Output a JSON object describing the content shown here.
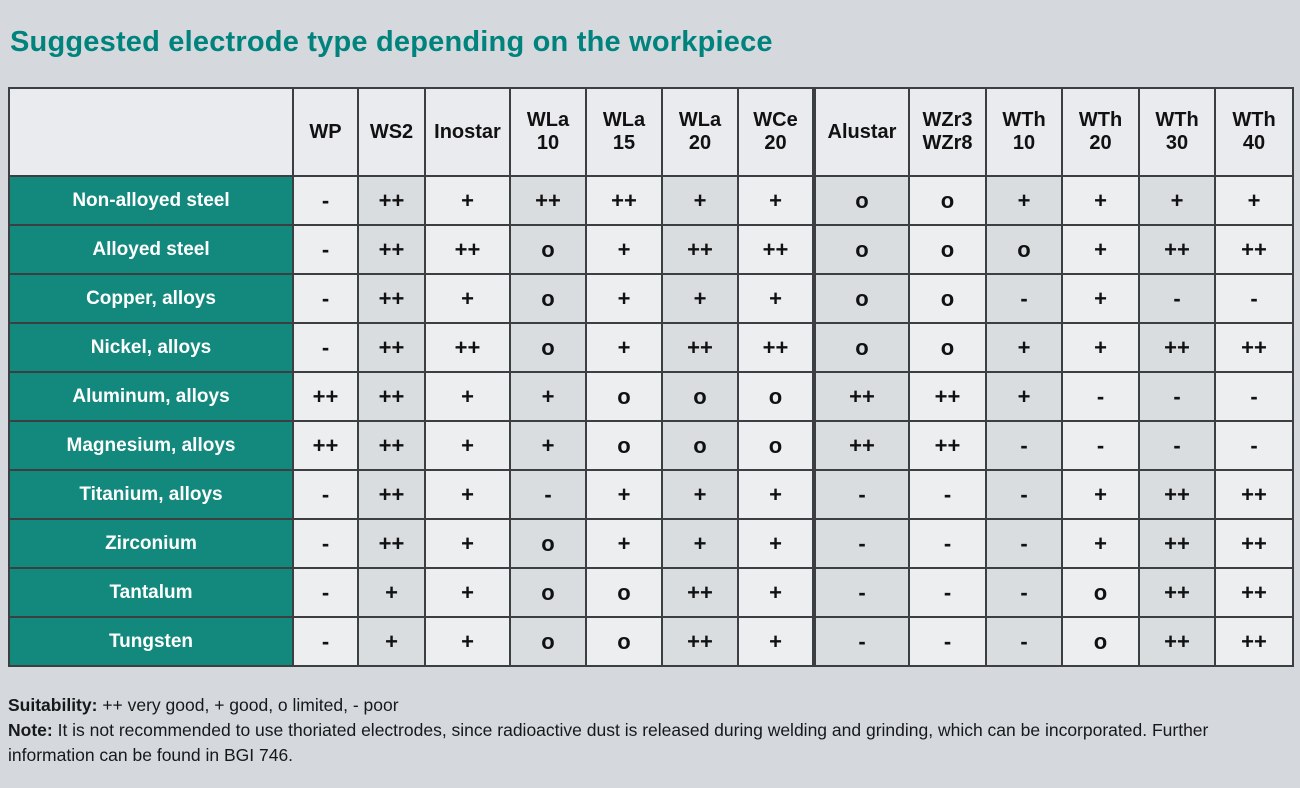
{
  "page": {
    "title": "Suggested electrode type depending on the workpiece"
  },
  "colors": {
    "background": "#d5d9dd",
    "title_teal": "#00837c",
    "row_header_teal": "#13897e",
    "cell_light": "#eceef0",
    "cell_dark": "#d9dde0",
    "header_cell": "#e9ebee",
    "border": "#3b3f42"
  },
  "table": {
    "corner_label": "",
    "columns": [
      "WP",
      "WS2",
      "Inostar",
      "WLa\n10",
      "WLa\n15",
      "WLa\n20",
      "WCe\n20",
      "Alustar",
      "WZr3\nWZr8",
      "WTh\n10",
      "WTh\n20",
      "WTh\n30",
      "WTh\n40"
    ],
    "group_separator_before_column": "Alustar",
    "rows": [
      {
        "label": "Non-alloyed steel",
        "values": [
          "-",
          "++",
          "+",
          "++",
          "++",
          "+",
          "+",
          "o",
          "o",
          "+",
          "+",
          "+",
          "+"
        ]
      },
      {
        "label": "Alloyed steel",
        "values": [
          "-",
          "++",
          "++",
          "o",
          "+",
          "++",
          "++",
          "o",
          "o",
          "o",
          "+",
          "++",
          "++"
        ]
      },
      {
        "label": "Copper, alloys",
        "values": [
          "-",
          "++",
          "+",
          "o",
          "+",
          "+",
          "+",
          "o",
          "o",
          "-",
          "+",
          "-",
          "-"
        ]
      },
      {
        "label": "Nickel, alloys",
        "values": [
          "-",
          "++",
          "++",
          "o",
          "+",
          "++",
          "++",
          "o",
          "o",
          "+",
          "+",
          "++",
          "++"
        ]
      },
      {
        "label": "Aluminum, alloys",
        "values": [
          "++",
          "++",
          "+",
          "+",
          "o",
          "o",
          "o",
          "++",
          "++",
          "+",
          "-",
          "-",
          "-"
        ]
      },
      {
        "label": "Magnesium, alloys",
        "values": [
          "++",
          "++",
          "+",
          "+",
          "o",
          "o",
          "o",
          "++",
          "++",
          "-",
          "-",
          "-",
          "-"
        ]
      },
      {
        "label": "Titanium, alloys",
        "values": [
          "-",
          "++",
          "+",
          "-",
          "+",
          "+",
          "+",
          "-",
          "-",
          "-",
          "+",
          "++",
          "++"
        ]
      },
      {
        "label": "Zirconium",
        "values": [
          "-",
          "++",
          "+",
          "o",
          "+",
          "+",
          "+",
          "-",
          "-",
          "-",
          "+",
          "++",
          "++"
        ]
      },
      {
        "label": "Tantalum",
        "values": [
          "-",
          "+",
          "+",
          "o",
          "o",
          "++",
          "+",
          "-",
          "-",
          "-",
          "o",
          "++",
          "++"
        ]
      },
      {
        "label": "Tungsten",
        "values": [
          "-",
          "+",
          "+",
          "o",
          "o",
          "++",
          "+",
          "-",
          "-",
          "-",
          "o",
          "++",
          "++"
        ]
      }
    ]
  },
  "footer": {
    "suitability_label": "Suitability:",
    "suitability_text": " ++ very good, + good, o limited, - poor",
    "note_label": "Note:",
    "note_text": " It is not recommended to use thoriated electrodes, since radioactive dust is released during welding and grinding, which can be incorporated. Further information can be found in BGI 746."
  }
}
